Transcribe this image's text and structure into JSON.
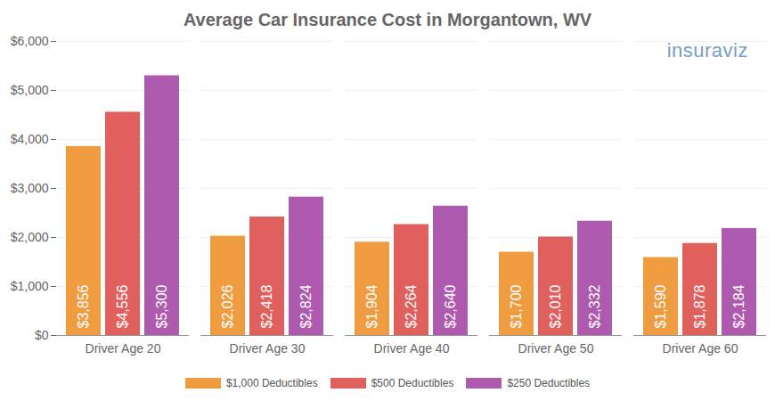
{
  "chart_data": {
    "type": "bar",
    "title": "Average Car Insurance Cost in Morgantown, WV",
    "annotations": [
      "insuraviz"
    ],
    "categories": [
      "Driver Age 20",
      "Driver Age 30",
      "Driver Age 40",
      "Driver Age 50",
      "Driver Age 60"
    ],
    "series": [
      {
        "name": "$1,000 Deductibles",
        "color": "#ee9c3f",
        "values": [
          3856,
          2026,
          1904,
          1700,
          1590
        ],
        "value_labels": [
          "$3,856",
          "$2,026",
          "$1,904",
          "$1,700",
          "$1,590"
        ]
      },
      {
        "name": "$500 Deductibles",
        "color": "#e0605e",
        "values": [
          4556,
          2418,
          2264,
          2010,
          1878
        ],
        "value_labels": [
          "$4,556",
          "$2,418",
          "$2,264",
          "$2,010",
          "$1,878"
        ]
      },
      {
        "name": "$250 Deductibles",
        "color": "#ae5aae",
        "values": [
          5300,
          2824,
          2640,
          2332,
          2184
        ],
        "value_labels": [
          "$5,300",
          "$2,824",
          "$2,640",
          "$2,332",
          "$2,184"
        ]
      }
    ],
    "ylim": [
      0,
      6000
    ],
    "yticks": [
      {
        "value": 0,
        "label": "$0"
      },
      {
        "value": 1000,
        "label": "$1,000"
      },
      {
        "value": 2000,
        "label": "$2,000"
      },
      {
        "value": 3000,
        "label": "$3,000"
      },
      {
        "value": 4000,
        "label": "$4,000"
      },
      {
        "value": 5000,
        "label": "$5,000"
      },
      {
        "value": 6000,
        "label": "$6,000"
      }
    ],
    "grid": true,
    "legend": "bottom",
    "data_labels": true
  }
}
